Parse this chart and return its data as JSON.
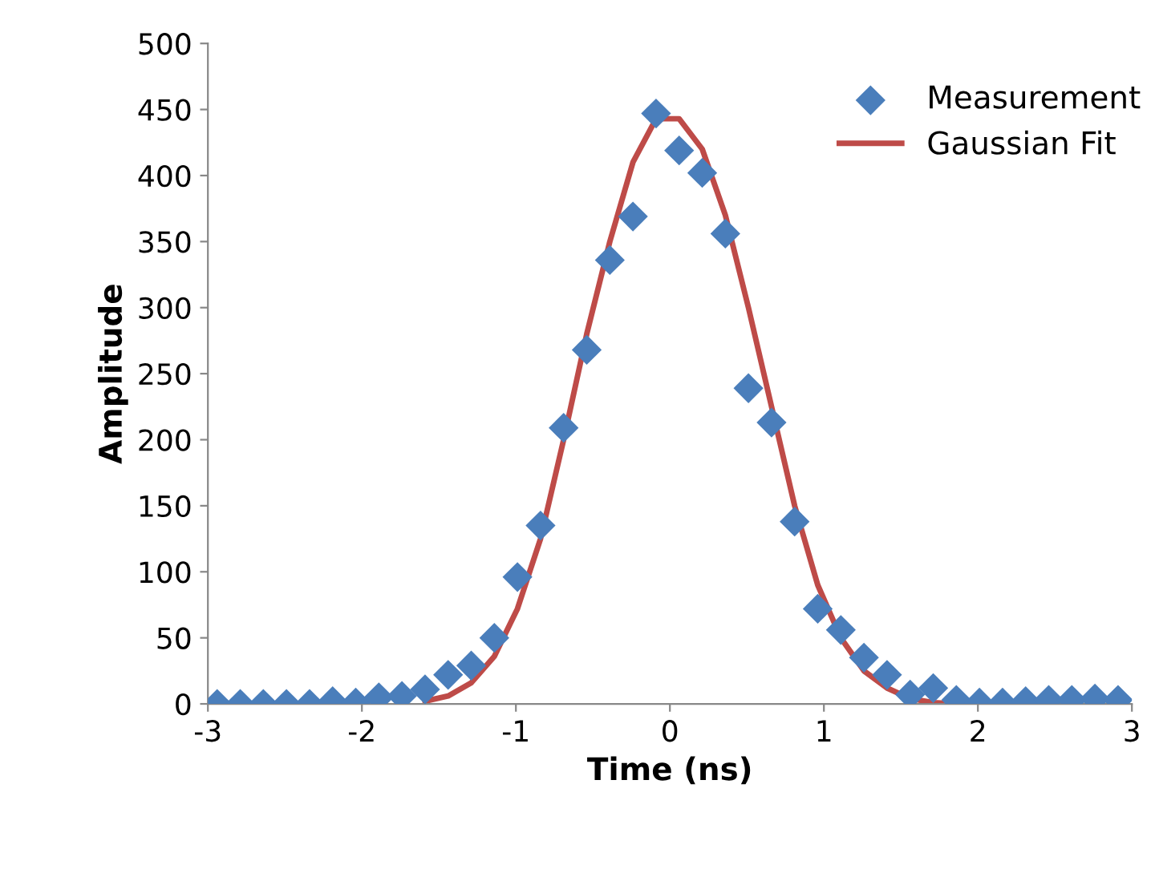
{
  "chart_data": {
    "type": "scatter",
    "xlabel": "Time (ns)",
    "ylabel": "Amplitude",
    "xlim": [
      -3,
      3
    ],
    "xticks": [
      -3,
      -2,
      -1,
      0,
      1,
      2,
      3
    ],
    "ylim": [
      0,
      500
    ],
    "yticks": [
      0,
      50,
      100,
      150,
      200,
      250,
      300,
      350,
      400,
      450,
      500
    ],
    "grid": false,
    "legend": "top right",
    "x": [
      -2.94,
      -2.79,
      -2.64,
      -2.49,
      -2.34,
      -2.19,
      -2.04,
      -1.89,
      -1.74,
      -1.59,
      -1.44,
      -1.29,
      -1.14,
      -0.99,
      -0.84,
      -0.69,
      -0.54,
      -0.39,
      -0.24,
      -0.09,
      0.06,
      0.21,
      0.36,
      0.51,
      0.66,
      0.81,
      0.96,
      1.11,
      1.26,
      1.41,
      1.56,
      1.71,
      1.86,
      2.01,
      2.16,
      2.31,
      2.46,
      2.61,
      2.76,
      2.91
    ],
    "series": [
      {
        "name": "Measurement",
        "marker": "diamond",
        "color": "#4a7ebb",
        "values": [
          0,
          0,
          0,
          0,
          0,
          2,
          1,
          5,
          6,
          11,
          22,
          29,
          50,
          96,
          135,
          209,
          268,
          336,
          369,
          447,
          419,
          402,
          356,
          239,
          213,
          138,
          72,
          56,
          35,
          22,
          7,
          12,
          3,
          1,
          1,
          2,
          3,
          3,
          4,
          3
        ]
      },
      {
        "name": "Gaussian Fit",
        "type": "line",
        "marker": "none",
        "line_style": "solid",
        "color": "#be4b48",
        "values": [
          null,
          null,
          null,
          null,
          null,
          null,
          null,
          null,
          null,
          2,
          6,
          16,
          36,
          72,
          125,
          200,
          280,
          350,
          410,
          443,
          443,
          420,
          370,
          300,
          225,
          150,
          90,
          50,
          25,
          12,
          4,
          1,
          0,
          0,
          null,
          null,
          null,
          null,
          null,
          null
        ]
      }
    ]
  }
}
